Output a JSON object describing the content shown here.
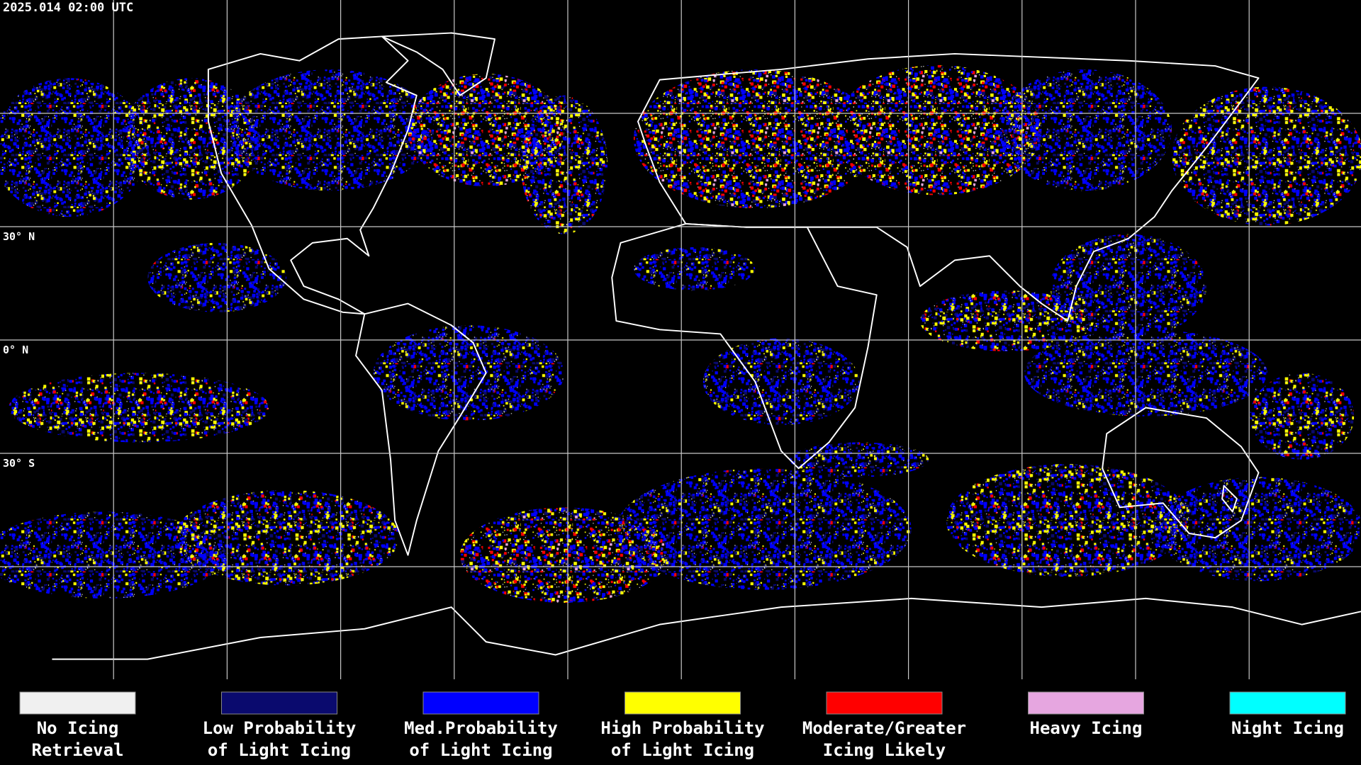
{
  "header": {
    "timestamp": "2025.014 02:00 UTC"
  },
  "lat_labels": [
    "30° N",
    "0° N",
    "30° S"
  ],
  "legend": {
    "items": [
      {
        "lines": [
          "No Icing",
          "Retrieval"
        ],
        "color": "#f0f0f0"
      },
      {
        "lines": [
          "Low Probability",
          "of Light Icing"
        ],
        "color": "#0a0a6e"
      },
      {
        "lines": [
          "Med.Probability",
          "of Light Icing"
        ],
        "color": "#0000ff"
      },
      {
        "lines": [
          "High Probability",
          "of Light Icing"
        ],
        "color": "#ffff00"
      },
      {
        "lines": [
          "Moderate/Greater",
          "Icing Likely"
        ],
        "color": "#ff0000"
      },
      {
        "lines": [
          "Heavy Icing"
        ],
        "color": "#e6a6e0"
      },
      {
        "lines": [
          "Night Icing"
        ],
        "color": "#00ffff"
      }
    ]
  }
}
